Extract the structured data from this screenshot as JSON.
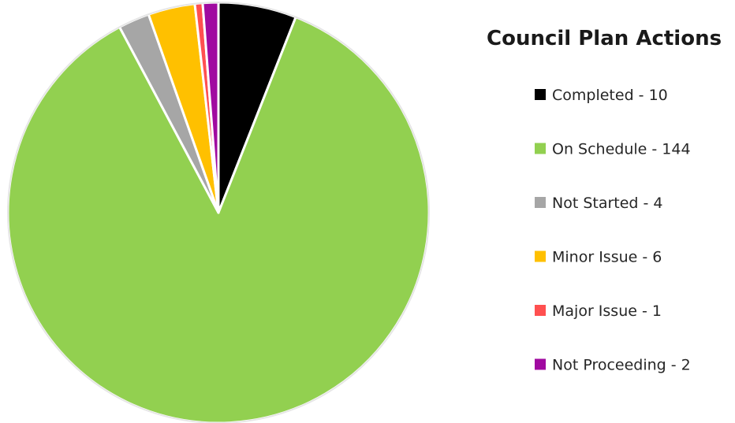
{
  "chart_data": {
    "type": "pie",
    "title": "Council Plan Actions",
    "legend_position": "right",
    "slices": [
      {
        "label": "Completed - 10",
        "name": "Completed",
        "value": 10,
        "color": "#000000"
      },
      {
        "label": "On Schedule - 144",
        "name": "On Schedule",
        "value": 144,
        "color": "#92d050"
      },
      {
        "label": "Not Started - 4",
        "name": "Not Started",
        "value": 4,
        "color": "#a6a6a6"
      },
      {
        "label": "Minor Issue - 6",
        "name": "Minor Issue",
        "value": 6,
        "color": "#ffc000"
      },
      {
        "label": "Major Issue - 1",
        "name": "Major Issue",
        "value": 1,
        "color": "#ff5050"
      },
      {
        "label": "Not Proceeding - 2",
        "name": "Not Proceeding",
        "value": 2,
        "color": "#a00aa0"
      }
    ]
  }
}
